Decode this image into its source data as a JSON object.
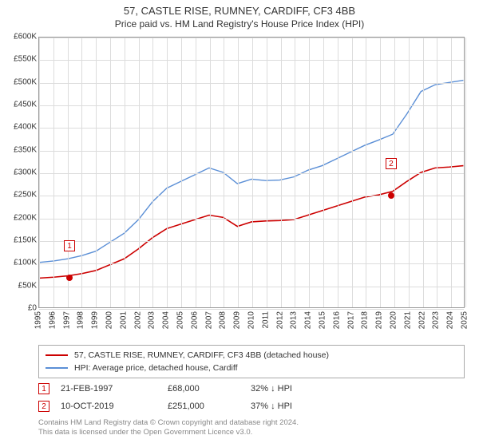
{
  "title_line1": "57, CASTLE RISE, RUMNEY, CARDIFF, CF3 4BB",
  "title_line2": "Price paid vs. HM Land Registry's House Price Index (HPI)",
  "chart": {
    "type": "line",
    "background_color": "#ffffff",
    "grid_color": "#dcdcdc",
    "axis_color": "#999999",
    "x_axis": {
      "min": 1995,
      "max": 2025,
      "step": 1,
      "ticks": [
        1995,
        1996,
        1997,
        1998,
        1999,
        2000,
        2001,
        2002,
        2003,
        2004,
        2005,
        2006,
        2007,
        2008,
        2009,
        2010,
        2011,
        2012,
        2013,
        2014,
        2015,
        2016,
        2017,
        2018,
        2019,
        2020,
        2021,
        2022,
        2023,
        2024,
        2025
      ],
      "label_fontsize": 10,
      "rotation_deg": -90
    },
    "y_axis": {
      "min": 0,
      "max": 600000,
      "step": 50000,
      "tick_labels": [
        "£0",
        "£50K",
        "£100K",
        "£150K",
        "£200K",
        "£250K",
        "£300K",
        "£350K",
        "£400K",
        "£450K",
        "£500K",
        "£550K",
        "£600K"
      ],
      "label_fontsize": 10
    },
    "series": [
      {
        "name": "price_paid",
        "label": "57, CASTLE RISE, RUMNEY, CARDIFF, CF3 4BB (detached house)",
        "color": "#cc0000",
        "line_width": 1.6,
        "data": [
          [
            1995,
            65000
          ],
          [
            1996,
            67000
          ],
          [
            1997,
            70000
          ],
          [
            1998,
            75000
          ],
          [
            1999,
            82000
          ],
          [
            2000,
            95000
          ],
          [
            2001,
            108000
          ],
          [
            2002,
            130000
          ],
          [
            2003,
            155000
          ],
          [
            2004,
            175000
          ],
          [
            2005,
            185000
          ],
          [
            2006,
            195000
          ],
          [
            2007,
            205000
          ],
          [
            2008,
            200000
          ],
          [
            2009,
            180000
          ],
          [
            2010,
            190000
          ],
          [
            2011,
            192000
          ],
          [
            2012,
            193000
          ],
          [
            2013,
            195000
          ],
          [
            2014,
            205000
          ],
          [
            2015,
            215000
          ],
          [
            2016,
            225000
          ],
          [
            2017,
            235000
          ],
          [
            2018,
            245000
          ],
          [
            2019,
            250000
          ],
          [
            2020,
            258000
          ],
          [
            2021,
            280000
          ],
          [
            2022,
            300000
          ],
          [
            2023,
            310000
          ],
          [
            2024,
            312000
          ],
          [
            2025,
            315000
          ]
        ]
      },
      {
        "name": "hpi",
        "label": "HPI: Average price, detached house, Cardiff",
        "color": "#5b8fd6",
        "line_width": 1.4,
        "data": [
          [
            1995,
            100000
          ],
          [
            1996,
            103000
          ],
          [
            1997,
            108000
          ],
          [
            1998,
            115000
          ],
          [
            1999,
            125000
          ],
          [
            2000,
            145000
          ],
          [
            2001,
            165000
          ],
          [
            2002,
            195000
          ],
          [
            2003,
            235000
          ],
          [
            2004,
            265000
          ],
          [
            2005,
            280000
          ],
          [
            2006,
            295000
          ],
          [
            2007,
            310000
          ],
          [
            2008,
            300000
          ],
          [
            2009,
            275000
          ],
          [
            2010,
            285000
          ],
          [
            2011,
            282000
          ],
          [
            2012,
            283000
          ],
          [
            2013,
            290000
          ],
          [
            2014,
            305000
          ],
          [
            2015,
            315000
          ],
          [
            2016,
            330000
          ],
          [
            2017,
            345000
          ],
          [
            2018,
            360000
          ],
          [
            2019,
            372000
          ],
          [
            2020,
            385000
          ],
          [
            2021,
            430000
          ],
          [
            2022,
            480000
          ],
          [
            2023,
            495000
          ],
          [
            2024,
            500000
          ],
          [
            2025,
            505000
          ]
        ]
      }
    ],
    "markers": [
      {
        "num": "1",
        "box_color": "#cc0000",
        "dot_color": "#cc0000",
        "x": 1997.14,
        "y": 68000,
        "box_offset_y": 55000
      },
      {
        "num": "2",
        "box_color": "#cc0000",
        "dot_color": "#cc0000",
        "x": 2019.77,
        "y": 251000,
        "box_offset_y": 55000
      }
    ]
  },
  "data_points": [
    {
      "num": "1",
      "box_color": "#cc0000",
      "date": "21-FEB-1997",
      "price": "£68,000",
      "pct": "32%",
      "direction": "↓",
      "comparator": "HPI"
    },
    {
      "num": "2",
      "box_color": "#cc0000",
      "date": "10-OCT-2019",
      "price": "£251,000",
      "pct": "37%",
      "direction": "↓",
      "comparator": "HPI"
    }
  ],
  "attribution": {
    "line1": "Contains HM Land Registry data © Crown copyright and database right 2024.",
    "line2": "This data is licensed under the Open Government Licence v3.0."
  }
}
